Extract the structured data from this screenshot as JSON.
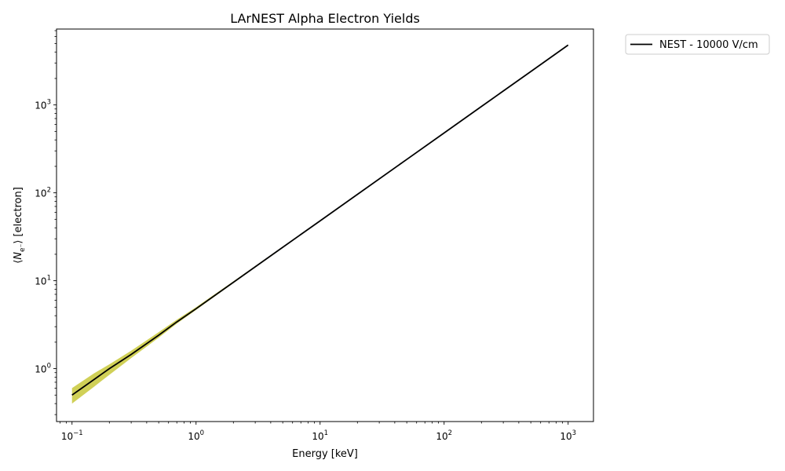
{
  "chart_data": {
    "type": "line",
    "title": "LArNEST Alpha Electron Yields",
    "xlabel": "Energy [keV]",
    "ylabel_parts": {
      "open": "⟨",
      "symbol": "N",
      "sub": "e⁻",
      "close": "⟩ [electron]"
    },
    "xscale": "log",
    "yscale": "log",
    "xlim": [
      0.075,
      1600
    ],
    "ylim": [
      0.25,
      7300
    ],
    "xticks": [
      {
        "base": "10",
        "exp": "−1",
        "value": 0.1
      },
      {
        "base": "10",
        "exp": "0",
        "value": 1
      },
      {
        "base": "10",
        "exp": "1",
        "value": 10
      },
      {
        "base": "10",
        "exp": "2",
        "value": 100
      },
      {
        "base": "10",
        "exp": "3",
        "value": 1000
      }
    ],
    "yticks": [
      {
        "base": "10",
        "exp": "0",
        "value": 1
      },
      {
        "base": "10",
        "exp": "1",
        "value": 10
      },
      {
        "base": "10",
        "exp": "2",
        "value": 100
      },
      {
        "base": "10",
        "exp": "3",
        "value": 1000
      }
    ],
    "grid": false,
    "legend_placement": "outside-top-right",
    "series": [
      {
        "name": "NEST - 10000 V/cm",
        "color": "#000000",
        "x": [
          0.1,
          0.15,
          0.2,
          0.3,
          0.5,
          0.7,
          1,
          2,
          5,
          10,
          20,
          50,
          100,
          200,
          500,
          1000
        ],
        "y": [
          0.5,
          0.75,
          1.0,
          1.45,
          2.4,
          3.4,
          4.8,
          9.6,
          24,
          48,
          96,
          240,
          480,
          960,
          2400,
          4800
        ]
      }
    ],
    "band": {
      "color": "#c8c83a",
      "x": [
        0.1,
        0.15,
        0.2,
        0.3,
        0.5,
        0.7,
        1,
        2,
        5,
        10,
        100,
        1000
      ],
      "lower": [
        0.4,
        0.62,
        0.85,
        1.32,
        2.25,
        3.25,
        4.65,
        9.4,
        23.7,
        47.5,
        476,
        4770
      ],
      "upper": [
        0.6,
        0.88,
        1.12,
        1.6,
        2.6,
        3.6,
        5.0,
        9.85,
        24.4,
        48.6,
        485,
        4830
      ]
    }
  }
}
